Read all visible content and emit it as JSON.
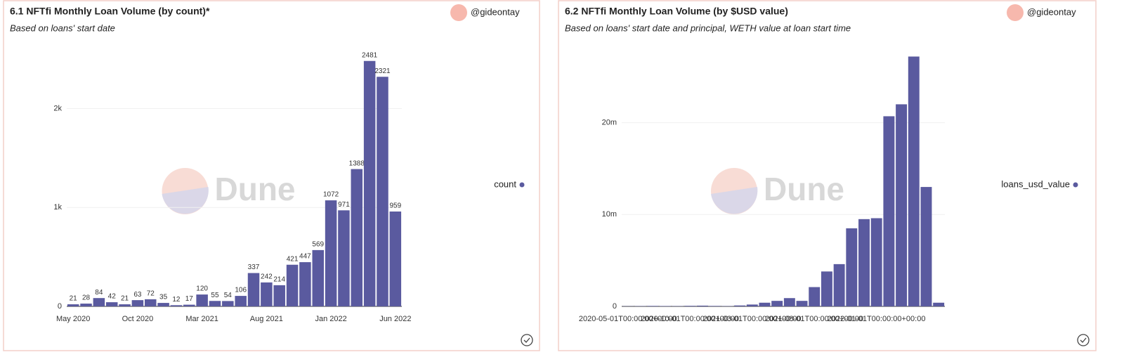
{
  "chart_data": [
    {
      "type": "bar",
      "title": "6.1 NFTfi Monthly Loan Volume (by count)*",
      "subtitle": "Based on loans' start date",
      "author": "@gideontay",
      "watermark": "Dune",
      "categories": [
        "May 2020",
        null,
        null,
        null,
        null,
        "Oct 2020",
        null,
        null,
        null,
        null,
        "Mar 2021",
        null,
        null,
        null,
        null,
        "Aug 2021",
        null,
        null,
        null,
        null,
        "Jan 2022",
        null,
        null,
        null,
        null,
        "Jun 2022"
      ],
      "series": [
        {
          "name": "count",
          "color": "#5a5a9f",
          "values": [
            21,
            28,
            84,
            42,
            21,
            63,
            72,
            35,
            12,
            17,
            120,
            55,
            54,
            106,
            337,
            242,
            214,
            421,
            447,
            569,
            1072,
            971,
            1388,
            2481,
            2321,
            959
          ]
        }
      ],
      "ylim": [
        0,
        2600
      ],
      "yticks": [
        0,
        {
          "value": 1000,
          "label": "1k"
        },
        {
          "value": 2000,
          "label": "2k"
        }
      ],
      "grid": true,
      "data_labels": true
    },
    {
      "type": "bar",
      "title": "6.2 NFTfi Monthly Loan Volume (by $USD value)",
      "subtitle": "Based on loans' start date and principal, WETH value at loan start time",
      "author": "@gideontay",
      "watermark": "Dune",
      "categories": [
        "2020-05-01T00:00:00+00:00",
        null,
        null,
        null,
        null,
        "2020-10-01T00:00:00+00:00",
        null,
        null,
        null,
        null,
        "2021-03-01T00:00:00+00:00",
        null,
        null,
        null,
        null,
        "2021-08-01T00:00:00+00:00",
        null,
        null,
        null,
        null,
        "2022-01-01T00:00:00+00:00",
        null,
        null,
        null,
        null,
        null
      ],
      "series": [
        {
          "name": "loans_usd_value",
          "color": "#5a5a9f",
          "values": [
            20000,
            30000,
            50000,
            40000,
            30000,
            60000,
            80000,
            50000,
            30000,
            100000,
            200000,
            400000,
            600000,
            900000,
            600000,
            2100000,
            3800000,
            4600000,
            8500000,
            9500000,
            9600000,
            20700000,
            22000000,
            27200000,
            13000000,
            400000
          ]
        }
      ],
      "ylim": [
        0,
        28000000
      ],
      "yticks": [
        0,
        {
          "value": 10000000,
          "label": "10m"
        },
        {
          "value": 20000000,
          "label": "20m"
        }
      ],
      "grid": true,
      "data_labels": false
    }
  ]
}
